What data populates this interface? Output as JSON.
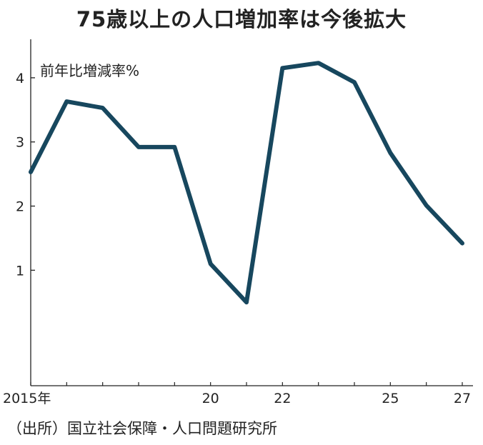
{
  "title": "75歳以上の人口増加率は今後拡大",
  "source": "（出所）国立社会保障・人口問題研究所",
  "chart_data": {
    "type": "line",
    "title": "75歳以上の人口増加率は今後拡大",
    "ylabel": "前年比増減率%",
    "xlabel": "",
    "x": [
      2015,
      2016,
      2017,
      2018,
      2019,
      2020,
      2021,
      2022,
      2023,
      2024,
      2025,
      2026,
      2027
    ],
    "values": [
      2.53,
      3.63,
      3.53,
      2.92,
      2.92,
      1.1,
      0.5,
      4.15,
      4.23,
      3.93,
      2.83,
      2.01,
      1.42
    ],
    "xticks": [
      {
        "x": 2015,
        "label": "2015年"
      },
      {
        "x": 2020,
        "label": "20"
      },
      {
        "x": 2022,
        "label": "22"
      },
      {
        "x": 2025,
        "label": "25"
      },
      {
        "x": 2027,
        "label": "27"
      }
    ],
    "yticks": [
      1,
      2,
      3,
      4
    ],
    "ylim": [
      -0.8,
      4.6
    ],
    "xlim": [
      2015,
      2027
    ],
    "grid": false,
    "line_color": "#17475e"
  }
}
